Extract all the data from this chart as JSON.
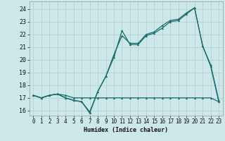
{
  "xlabel": "Humidex (Indice chaleur)",
  "xlim": [
    -0.5,
    23.5
  ],
  "ylim": [
    15.6,
    24.6
  ],
  "yticks": [
    16,
    17,
    18,
    19,
    20,
    21,
    22,
    23,
    24
  ],
  "xticks": [
    0,
    1,
    2,
    3,
    4,
    5,
    6,
    7,
    8,
    9,
    10,
    11,
    12,
    13,
    14,
    15,
    16,
    17,
    18,
    19,
    20,
    21,
    22,
    23
  ],
  "bg_color": "#cde8e8",
  "grid_color": "#b8d4d4",
  "line_color": "#1a6b6b",
  "line1_x": [
    0,
    1,
    2,
    3,
    4,
    5,
    6,
    7,
    8,
    9,
    10,
    11,
    12,
    13,
    14,
    15,
    16,
    17,
    18,
    19,
    20,
    21,
    22,
    23
  ],
  "line1_y": [
    17.2,
    17.0,
    17.2,
    17.3,
    17.0,
    16.8,
    16.7,
    15.8,
    17.5,
    18.7,
    20.2,
    22.3,
    21.2,
    21.2,
    21.9,
    22.1,
    22.5,
    23.0,
    23.1,
    23.6,
    24.1,
    21.1,
    19.5,
    16.7
  ],
  "line2_x": [
    0,
    1,
    2,
    3,
    4,
    5,
    6,
    7,
    8,
    9,
    10,
    11,
    12,
    13,
    14,
    15,
    16,
    17,
    18,
    19,
    20,
    21,
    22,
    23
  ],
  "line2_y": [
    17.2,
    17.0,
    17.2,
    17.3,
    17.0,
    16.8,
    16.7,
    15.9,
    17.5,
    18.7,
    20.4,
    21.9,
    21.3,
    21.3,
    22.0,
    22.2,
    22.7,
    23.1,
    23.2,
    23.7,
    24.1,
    21.1,
    19.6,
    16.8
  ],
  "line3_x": [
    0,
    1,
    2,
    3,
    4,
    5,
    6,
    7,
    8,
    9,
    10,
    11,
    12,
    13,
    14,
    15,
    16,
    17,
    18,
    19,
    20,
    21,
    22,
    23
  ],
  "line3_y": [
    17.2,
    17.0,
    17.2,
    17.3,
    17.2,
    17.0,
    17.0,
    17.0,
    17.0,
    17.0,
    17.0,
    17.0,
    17.0,
    17.0,
    17.0,
    17.0,
    17.0,
    17.0,
    17.0,
    17.0,
    17.0,
    17.0,
    17.0,
    16.7
  ]
}
